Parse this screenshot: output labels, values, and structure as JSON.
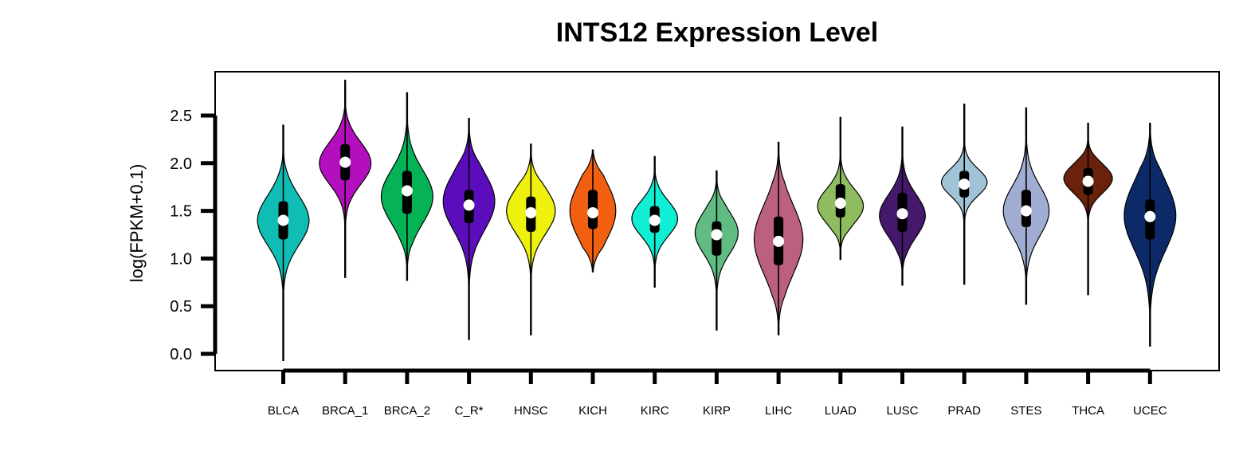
{
  "chart_data": {
    "type": "violin",
    "title": "INTS12 Expression Level",
    "xlabel": "",
    "ylabel": "log(FPKM+0.1)",
    "ylim": [
      -0.2,
      2.95
    ],
    "yticks": [
      "0.0",
      "0.5",
      "1.0",
      "1.5",
      "2.0",
      "2.5"
    ],
    "grid": false,
    "categories": [
      "BLCA",
      "BRCA_1",
      "BRCA_2",
      "C_R*",
      "HNSC",
      "KICH",
      "KIRC",
      "KIRP",
      "LIHC",
      "LUAD",
      "LUSC",
      "PRAD",
      "STES",
      "THCA",
      "UCEC"
    ],
    "series": [
      {
        "category": "BLCA",
        "color": "#0fbdb4",
        "min": -0.07,
        "max": 2.4,
        "q1": 1.2,
        "median": 1.4,
        "q3": 1.6,
        "mode": 1.4,
        "width": 0.9,
        "spread": 0.26
      },
      {
        "category": "BRCA_1",
        "color": "#b40fbd",
        "min": 0.8,
        "max": 2.87,
        "q1": 1.82,
        "median": 2.01,
        "q3": 2.2,
        "mode": 2.0,
        "width": 0.9,
        "spread": 0.22
      },
      {
        "category": "BRCA_2",
        "color": "#06b256",
        "min": 0.77,
        "max": 2.74,
        "q1": 1.47,
        "median": 1.71,
        "q3": 1.92,
        "mode": 1.65,
        "width": 0.9,
        "spread": 0.28
      },
      {
        "category": "C_R*",
        "color": "#5c0dbb",
        "min": 0.15,
        "max": 2.47,
        "q1": 1.37,
        "median": 1.56,
        "q3": 1.72,
        "mode": 1.6,
        "width": 0.9,
        "spread": 0.3
      },
      {
        "category": "HNSC",
        "color": "#eef00e",
        "min": 0.2,
        "max": 2.2,
        "q1": 1.28,
        "median": 1.48,
        "q3": 1.65,
        "mode": 1.5,
        "width": 0.85,
        "spread": 0.24
      },
      {
        "category": "KICH",
        "color": "#f06010",
        "min": 0.86,
        "max": 2.14,
        "q1": 1.31,
        "median": 1.48,
        "q3": 1.72,
        "mode": 1.5,
        "width": 0.8,
        "spread": 0.3
      },
      {
        "category": "KIRC",
        "color": "#10eed4",
        "min": 0.7,
        "max": 2.07,
        "q1": 1.27,
        "median": 1.4,
        "q3": 1.55,
        "mode": 1.42,
        "width": 0.8,
        "spread": 0.18
      },
      {
        "category": "KIRP",
        "color": "#60bc82",
        "min": 0.25,
        "max": 1.92,
        "q1": 1.03,
        "median": 1.25,
        "q3": 1.39,
        "mode": 1.27,
        "width": 0.75,
        "spread": 0.22
      },
      {
        "category": "LIHC",
        "color": "#bc6080",
        "min": 0.2,
        "max": 2.22,
        "q1": 0.93,
        "median": 1.18,
        "q3": 1.44,
        "mode": 1.2,
        "width": 0.85,
        "spread": 0.36
      },
      {
        "category": "LUAD",
        "color": "#90bc60",
        "min": 0.99,
        "max": 2.48,
        "q1": 1.43,
        "median": 1.58,
        "q3": 1.78,
        "mode": 1.55,
        "width": 0.8,
        "spread": 0.18
      },
      {
        "category": "LUSC",
        "color": "#44186a",
        "min": 0.72,
        "max": 2.38,
        "q1": 1.28,
        "median": 1.47,
        "q3": 1.69,
        "mode": 1.45,
        "width": 0.8,
        "spread": 0.22
      },
      {
        "category": "PRAD",
        "color": "#a0c4d6",
        "min": 0.73,
        "max": 2.62,
        "q1": 1.64,
        "median": 1.78,
        "q3": 1.92,
        "mode": 1.8,
        "width": 0.8,
        "spread": 0.14
      },
      {
        "category": "STES",
        "color": "#a0acd2",
        "min": 0.52,
        "max": 2.58,
        "q1": 1.33,
        "median": 1.5,
        "q3": 1.72,
        "mode": 1.5,
        "width": 0.8,
        "spread": 0.26
      },
      {
        "category": "THCA",
        "color": "#6a220c",
        "min": 0.62,
        "max": 2.42,
        "q1": 1.67,
        "median": 1.81,
        "q3": 1.95,
        "mode": 1.84,
        "width": 0.85,
        "spread": 0.15
      },
      {
        "category": "UCEC",
        "color": "#0c2a68",
        "min": 0.08,
        "max": 2.42,
        "q1": 1.2,
        "median": 1.44,
        "q3": 1.62,
        "mode": 1.45,
        "width": 0.9,
        "spread": 0.36
      }
    ]
  }
}
